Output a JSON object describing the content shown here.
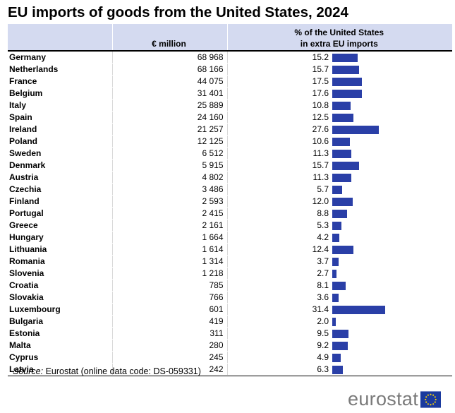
{
  "title": "EU imports of goods from the United States, 2024",
  "table": {
    "headers": {
      "country": "",
      "value": "€ million",
      "pct_line1": "% of the United States",
      "pct_line2": "in extra EU imports"
    },
    "rows": [
      {
        "country": "Germany",
        "value": "68 968",
        "pct": "15.2",
        "pct_num": 15.2
      },
      {
        "country": "Netherlands",
        "value": "68 166",
        "pct": "15.7",
        "pct_num": 15.7
      },
      {
        "country": "France",
        "value": "44 075",
        "pct": "17.5",
        "pct_num": 17.5
      },
      {
        "country": "Belgium",
        "value": "31 401",
        "pct": "17.6",
        "pct_num": 17.6
      },
      {
        "country": "Italy",
        "value": "25 889",
        "pct": "10.8",
        "pct_num": 10.8
      },
      {
        "country": "Spain",
        "value": "24 160",
        "pct": "12.5",
        "pct_num": 12.5
      },
      {
        "country": "Ireland",
        "value": "21 257",
        "pct": "27.6",
        "pct_num": 27.6
      },
      {
        "country": "Poland",
        "value": "12 125",
        "pct": "10.6",
        "pct_num": 10.6
      },
      {
        "country": "Sweden",
        "value": "6 512",
        "pct": "11.3",
        "pct_num": 11.3
      },
      {
        "country": "Denmark",
        "value": "5 915",
        "pct": "15.7",
        "pct_num": 15.7
      },
      {
        "country": "Austria",
        "value": "4 802",
        "pct": "11.3",
        "pct_num": 11.3
      },
      {
        "country": "Czechia",
        "value": "3 486",
        "pct": "5.7",
        "pct_num": 5.7
      },
      {
        "country": "Finland",
        "value": "2 593",
        "pct": "12.0",
        "pct_num": 12.0
      },
      {
        "country": "Portugal",
        "value": "2 415",
        "pct": "8.8",
        "pct_num": 8.8
      },
      {
        "country": "Greece",
        "value": "2 161",
        "pct": "5.3",
        "pct_num": 5.3
      },
      {
        "country": "Hungary",
        "value": "1 664",
        "pct": "4.2",
        "pct_num": 4.2
      },
      {
        "country": "Lithuania",
        "value": "1 614",
        "pct": "12.4",
        "pct_num": 12.4
      },
      {
        "country": "Romania",
        "value": "1 314",
        "pct": "3.7",
        "pct_num": 3.7
      },
      {
        "country": "Slovenia",
        "value": "1 218",
        "pct": "2.7",
        "pct_num": 2.7
      },
      {
        "country": "Croatia",
        "value": "785",
        "pct": "8.1",
        "pct_num": 8.1
      },
      {
        "country": "Slovakia",
        "value": "766",
        "pct": "3.6",
        "pct_num": 3.6
      },
      {
        "country": "Luxembourg",
        "value": "601",
        "pct": "31.4",
        "pct_num": 31.4
      },
      {
        "country": "Bulgaria",
        "value": "419",
        "pct": "2.0",
        "pct_num": 2.0
      },
      {
        "country": "Estonia",
        "value": "311",
        "pct": "9.5",
        "pct_num": 9.5
      },
      {
        "country": "Malta",
        "value": "280",
        "pct": "9.2",
        "pct_num": 9.2
      },
      {
        "country": "Cyprus",
        "value": "245",
        "pct": "4.9",
        "pct_num": 4.9
      },
      {
        "country": "Latvia",
        "value": "242",
        "pct": "6.3",
        "pct_num": 6.3
      }
    ]
  },
  "source": {
    "label": "Source:",
    "text": "Eurostat (online data code: DS-059331)"
  },
  "logo": {
    "text": "eurostat",
    "flag_icon": "eu-flag-icon"
  },
  "colors": {
    "bar": "#2a3fa7",
    "header_bg": "#d4daf0",
    "logo_text": "#7a7a7a",
    "flag_blue": "#1a3a9e",
    "flag_stars": "#ffd600"
  }
}
